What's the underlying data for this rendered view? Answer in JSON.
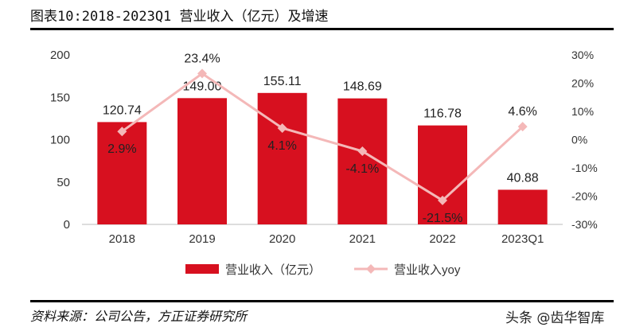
{
  "title": "图表10:2018-2023Q1 营业收入（亿元）及增速",
  "source": "资料来源：公司公告，方正证券研究所",
  "watermark": "头条 @齿华智库",
  "colors": {
    "bar": "#d7101f",
    "line": "#f4b8b8"
  },
  "chart_data": {
    "type": "bar+line",
    "categories": [
      "2018",
      "2019",
      "2020",
      "2021",
      "2022",
      "2023Q1"
    ],
    "series": [
      {
        "name": "营业收入（亿元）",
        "type": "bar",
        "axis": "left",
        "values": [
          120.74,
          149.0,
          155.11,
          148.69,
          116.78,
          40.88
        ],
        "labels": [
          "120.74",
          "149.00",
          "155.11",
          "148.69",
          "116.78",
          "40.88"
        ]
      },
      {
        "name": "营业收入yoy",
        "type": "line",
        "axis": "right",
        "values": [
          2.9,
          23.4,
          4.1,
          -4.1,
          -21.5,
          4.6
        ],
        "labels": [
          "2.9%",
          "23.4%",
          "4.1%",
          "-4.1%",
          "-21.5%",
          "4.6%"
        ]
      }
    ],
    "ylim_left": [
      0,
      200
    ],
    "yticks_left": [
      "0",
      "50",
      "100",
      "150",
      "200"
    ],
    "ylim_right": [
      -30,
      30
    ],
    "yticks_right": [
      "-30%",
      "-20%",
      "-10%",
      "0%",
      "10%",
      "20%",
      "30%"
    ],
    "grid": false,
    "legend": "bottom"
  }
}
